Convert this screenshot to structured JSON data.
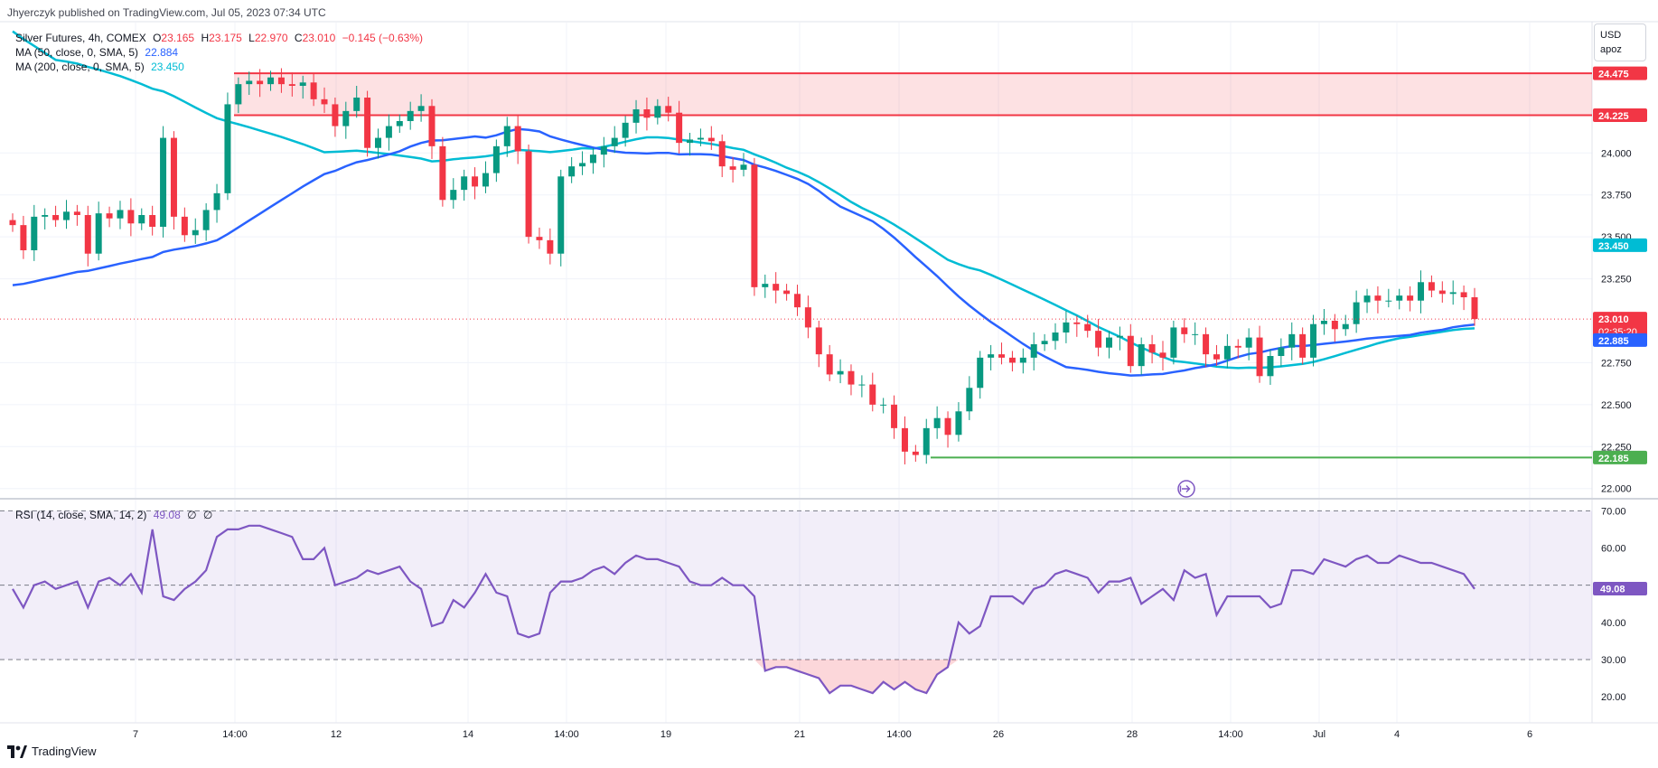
{
  "publisher": "Jhyerczyk published on TradingView.com, Jul 05, 2023 07:34 UTC",
  "legend": {
    "symbol": "Silver Futures, 4h, COMEX",
    "o_label": "O",
    "o_value": "23.165",
    "h_label": "H",
    "h_value": "23.175",
    "l_label": "L",
    "l_value": "22.970",
    "c_label": "C",
    "c_value": "23.010",
    "change": "−0.145 (−0.63%)",
    "ma50_label": "MA (50, close, 0, SMA, 5)",
    "ma50_value": "22.884",
    "ma200_label": "MA (200, close, 0, SMA, 5)",
    "ma200_value": "23.450"
  },
  "currency": {
    "line1": "USD",
    "line2": "apoz"
  },
  "footer": {
    "brand": "TradingView"
  },
  "colors": {
    "up": "#089981",
    "down": "#f23645",
    "ma50": "#2962ff",
    "ma200": "#00bcd4",
    "rsi": "#7e57c2",
    "zone": "#f23645",
    "support": "#4caf50",
    "grid": "#f0f3fa"
  },
  "chart_data": [
    {
      "type": "candlestick",
      "title": "Silver Futures, 4h, COMEX",
      "ylim": [
        21.95,
        24.75
      ],
      "y_ticks": [
        "24.000",
        "23.750",
        "23.500",
        "23.250",
        "22.750",
        "22.500",
        "22.250",
        "22.000"
      ],
      "x_tick_labels": [
        "7",
        "14:00",
        "12",
        "14",
        "14:00",
        "19",
        "21",
        "14:00",
        "26",
        "28",
        "14:00",
        "Jul",
        "4",
        "6"
      ],
      "price_labels": [
        {
          "text": "24.475",
          "value": 24.475,
          "kind": "zone"
        },
        {
          "text": "24.225",
          "value": 24.225,
          "kind": "zone"
        },
        {
          "text": "23.450",
          "value": 23.45,
          "kind": "ma200"
        },
        {
          "text": "23.010",
          "sub": "02:35:20",
          "value": 23.01,
          "kind": "last"
        },
        {
          "text": "22.885",
          "value": 22.885,
          "kind": "ma50"
        },
        {
          "text": "22.185",
          "value": 22.185,
          "kind": "support"
        }
      ],
      "resistance_zone": [
        24.225,
        24.475
      ],
      "support_level": 22.185,
      "last_price": 23.01,
      "closes": [
        23.57,
        23.42,
        23.62,
        23.63,
        23.6,
        23.65,
        23.63,
        23.4,
        23.64,
        23.61,
        23.66,
        23.58,
        23.63,
        23.56,
        24.09,
        23.62,
        23.51,
        23.54,
        23.66,
        23.76,
        24.29,
        24.41,
        24.43,
        24.41,
        24.45,
        24.41,
        24.4,
        24.42,
        24.32,
        24.29,
        24.16,
        24.25,
        24.33,
        24.03,
        24.09,
        24.16,
        24.19,
        24.25,
        24.28,
        24.04,
        23.72,
        23.78,
        23.86,
        23.8,
        23.88,
        24.04,
        24.16,
        24.01,
        23.5,
        23.48,
        23.4,
        23.86,
        23.92,
        23.94,
        23.99,
        24.04,
        24.09,
        24.18,
        24.26,
        24.21,
        24.28,
        24.24,
        24.06,
        24.08,
        24.09,
        24.07,
        23.92,
        23.9,
        23.93,
        23.2,
        23.22,
        23.18,
        23.16,
        23.08,
        22.96,
        22.8,
        22.68,
        22.7,
        22.62,
        22.62,
        22.5,
        22.5,
        22.36,
        22.22,
        22.2,
        22.36,
        22.42,
        22.32,
        22.46,
        22.6,
        22.78,
        22.8,
        22.78,
        22.75,
        22.78,
        22.86,
        22.88,
        22.93,
        22.99,
        22.98,
        22.94,
        22.84,
        22.9,
        22.91,
        22.73,
        22.86,
        22.81,
        22.78,
        22.96,
        22.92,
        22.92,
        22.8,
        22.77,
        22.85,
        22.84,
        22.9,
        22.67,
        22.79,
        22.84,
        22.92,
        22.78,
        22.98,
        23.0,
        22.95,
        22.98,
        23.11,
        23.15,
        23.12,
        23.12,
        23.15,
        23.12,
        23.23,
        23.18,
        23.16,
        23.17,
        23.14,
        23.01
      ]
    },
    {
      "type": "line",
      "title": "RSI (14, close, SMA, 14, 2)",
      "value_label": "49.08",
      "extra_labels": [
        "∅",
        "∅"
      ],
      "ylim": [
        13,
        73
      ],
      "y_ticks": [
        "70.00",
        "60.00",
        "50.00",
        "40.00",
        "30.00",
        "20.00"
      ],
      "bands": [
        30,
        50,
        70
      ],
      "last_value": 49.08,
      "values": [
        49,
        44,
        50,
        51,
        49,
        50,
        51,
        44,
        51,
        52,
        50,
        53,
        48,
        65,
        47,
        46,
        49,
        51,
        54,
        63,
        65,
        65,
        66,
        66,
        65,
        64,
        63,
        57,
        57,
        60,
        50,
        51,
        52,
        54,
        53,
        54,
        55,
        51,
        49,
        39,
        40,
        46,
        44,
        48,
        53,
        48,
        47,
        37,
        36,
        37,
        48,
        51,
        51,
        52,
        54,
        55,
        53,
        56,
        58,
        57,
        57,
        56,
        55,
        51,
        50,
        50,
        52,
        50,
        50,
        47,
        27,
        28,
        28,
        27,
        26,
        25,
        21,
        23,
        23,
        22,
        21,
        24,
        22,
        24,
        22,
        21,
        26,
        28,
        40,
        37,
        39,
        47,
        47,
        47,
        45,
        49,
        50,
        53,
        54,
        53,
        52,
        48,
        51,
        51,
        52,
        45,
        47,
        49,
        46,
        54,
        52,
        53,
        42,
        47,
        47,
        47,
        47,
        44,
        45,
        54,
        54,
        53,
        57,
        56,
        55,
        57,
        58,
        56,
        56,
        58,
        57,
        56,
        56,
        55,
        54,
        53,
        49
      ]
    }
  ]
}
